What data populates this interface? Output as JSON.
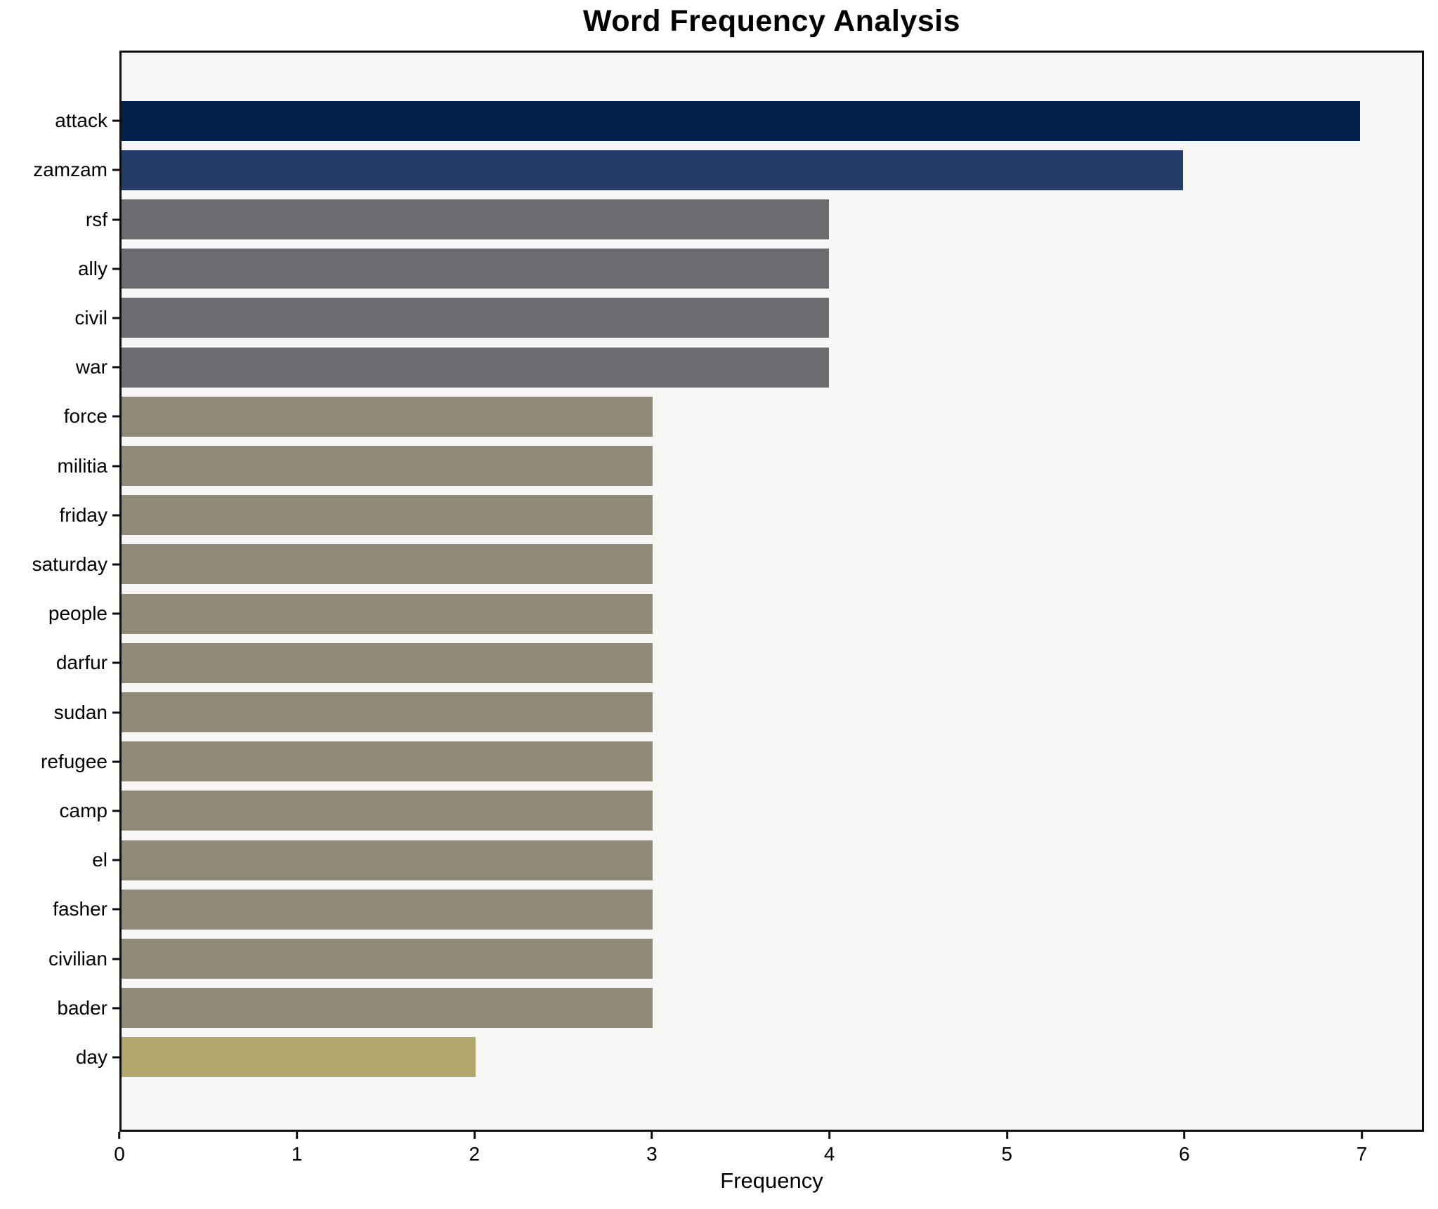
{
  "title": "Word Frequency Analysis",
  "chart_data": {
    "type": "bar",
    "orientation": "horizontal",
    "title": "Word Frequency Analysis",
    "xlabel": "Frequency",
    "ylabel": "",
    "categories": [
      "attack",
      "zamzam",
      "rsf",
      "ally",
      "civil",
      "war",
      "force",
      "militia",
      "friday",
      "saturday",
      "people",
      "darfur",
      "sudan",
      "refugee",
      "camp",
      "el",
      "fasher",
      "civilian",
      "bader",
      "day"
    ],
    "values": [
      7,
      6,
      4,
      4,
      4,
      4,
      3,
      3,
      3,
      3,
      3,
      3,
      3,
      3,
      3,
      3,
      3,
      3,
      3,
      2
    ],
    "bar_colors": [
      "#02214d",
      "#253c6b",
      "#6b6c6f",
      "#6b6c6f",
      "#6b6c6f",
      "#6b6c6f",
      "#8f8977",
      "#8f8977",
      "#8f8977",
      "#8f8977",
      "#8f8977",
      "#8f8977",
      "#8f8977",
      "#8f8977",
      "#8f8977",
      "#8f8977",
      "#8f8977",
      "#8f8977",
      "#8f8977",
      "#b2a76d"
    ],
    "xlim": [
      0,
      7.35
    ],
    "x_ticks": [
      0,
      1,
      2,
      3,
      4,
      5,
      6,
      7
    ],
    "grid": false,
    "legend": false,
    "colors": {
      "plot_background": "#f6f6f5",
      "figure_background": "#ffffff",
      "axis": "#0f0f0f",
      "text": "#000000"
    }
  }
}
